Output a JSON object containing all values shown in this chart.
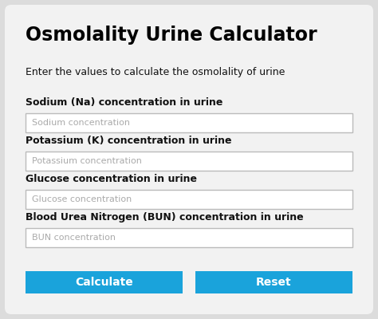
{
  "title": "Osmolality Urine Calculator",
  "subtitle": "Enter the values to calculate the osmolality of urine",
  "fields": [
    {
      "label": "Sodium (Na) concentration in urine",
      "placeholder": "Sodium concentration"
    },
    {
      "label": "Potassium (K) concentration in urine",
      "placeholder": "Potassium concentration"
    },
    {
      "label": "Glucose concentration in urine",
      "placeholder": "Glucose concentration"
    },
    {
      "label": "Blood Urea Nitrogen (BUN) concentration in urine",
      "placeholder": "BUN concentration"
    }
  ],
  "buttons": [
    "Calculate",
    "Reset"
  ],
  "bg_color": "#dcdcdc",
  "card_color": "#f2f2f2",
  "input_bg": "#ffffff",
  "input_border": "#bbbbbb",
  "input_placeholder_color": "#aaaaaa",
  "button_color": "#1aa3db",
  "button_text_color": "#ffffff",
  "title_color": "#000000",
  "subtitle_color": "#111111",
  "label_color": "#111111",
  "title_fontsize": 17,
  "subtitle_fontsize": 9,
  "label_fontsize": 9,
  "placeholder_fontsize": 8,
  "button_fontsize": 10
}
